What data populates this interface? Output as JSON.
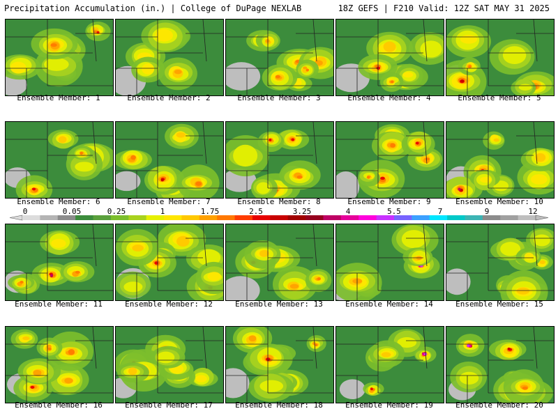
{
  "header": {
    "left": "Precipitation Accumulation (in.) | College of DuPage NEXLAB",
    "right": "18Z GEFS | F210 Valid: 12Z SAT MAY 31 2025"
  },
  "members": [
    {
      "label": "Ensemble Member: 1"
    },
    {
      "label": "Ensemble Member: 2"
    },
    {
      "label": "Ensemble Member: 3"
    },
    {
      "label": "Ensemble Member: 4"
    },
    {
      "label": "Ensemble Member: 5"
    },
    {
      "label": "Ensemble Member: 6"
    },
    {
      "label": "Ensemble Member: 7"
    },
    {
      "label": "Ensemble Member: 8"
    },
    {
      "label": "Ensemble Member: 9"
    },
    {
      "label": "Ensemble Member: 10"
    },
    {
      "label": "Ensemble Member: 11"
    },
    {
      "label": "Ensemble Member: 12"
    },
    {
      "label": "Ensemble Member: 13"
    },
    {
      "label": "Ensemble Member: 14"
    },
    {
      "label": "Ensemble Member: 15"
    },
    {
      "label": "Ensemble Member: 16"
    },
    {
      "label": "Ensemble Member: 17"
    },
    {
      "label": "Ensemble Member: 18"
    },
    {
      "label": "Ensemble Member: 19"
    },
    {
      "label": "Ensemble Member: 20"
    }
  ],
  "colorbar": {
    "tick_labels": [
      "0",
      "0.05",
      "0.25",
      "1",
      "1.75",
      "2.5",
      "3.25",
      "4",
      "5.5",
      "7",
      "9",
      "12"
    ],
    "colors": [
      "#dcdcdc",
      "#b4b4b4",
      "#8c8c8c",
      "#3c8c3c",
      "#5aa03c",
      "#7cbe2c",
      "#a8d21e",
      "#e6f000",
      "#ffe600",
      "#ffc800",
      "#ffa000",
      "#ff7800",
      "#ff3c00",
      "#e60000",
      "#c80000",
      "#a00000",
      "#96001e",
      "#be0064",
      "#e6009a",
      "#ff00dc",
      "#c832ff",
      "#7864ff",
      "#3ca0ff",
      "#00e6ff",
      "#00c8c8",
      "#3cb4b4",
      "#8c8c8c",
      "#a0a0a0",
      "#bebebe"
    ]
  }
}
